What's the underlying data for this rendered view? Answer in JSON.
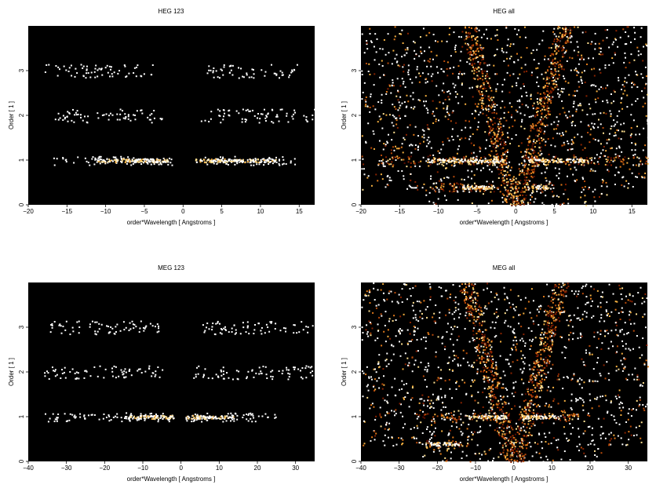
{
  "chart_data": [
    {
      "type": "heatmap",
      "title": "HEG 123",
      "xlabel": "order*Wavelength [ Angstroms ]",
      "ylabel": "Order [ 1 ]",
      "xlim": [
        -20,
        17
      ],
      "ylim": [
        0,
        4
      ],
      "xticks": [
        -20,
        -15,
        -10,
        -5,
        0,
        5,
        10,
        15
      ],
      "yticks": [
        0,
        1,
        2,
        3
      ],
      "background": "#000000",
      "bands": [
        {
          "order": 1,
          "x_ranges": [
            [
              -17,
              -1.5
            ],
            [
              1.5,
              14.5
            ]
          ],
          "peak_ranges": [
            [
              -11.5,
              -2
            ],
            [
              1.5,
              12
            ]
          ]
        },
        {
          "order": 2,
          "x_ranges": [
            [
              -17,
              -2.5
            ],
            [
              2.2,
              17
            ]
          ],
          "peak_ranges": []
        },
        {
          "order": 3,
          "x_ranges": [
            [
              -18,
              -4
            ],
            [
              3,
              15
            ]
          ],
          "peak_ranges": []
        }
      ]
    },
    {
      "type": "heatmap",
      "title": "HEG all",
      "xlabel": "order*Wavelength [ Angstroms ]",
      "ylabel": "Order [ 1 ]",
      "xlim": [
        -20,
        17
      ],
      "ylim": [
        0,
        4
      ],
      "xticks": [
        -20,
        -15,
        -10,
        -5,
        0,
        5,
        10,
        15
      ],
      "yticks": [
        0,
        1,
        2,
        3
      ],
      "background": "#000000",
      "bands": [
        {
          "order": 1,
          "x_ranges": [
            [
              -18,
              -1
            ],
            [
              1,
              17
            ]
          ],
          "peak_ranges": [
            [
              -11.5,
              -1.5
            ],
            [
              1.5,
              9
            ]
          ]
        },
        {
          "order": 0.4,
          "x_ranges": [
            [
              -11.5,
              -2
            ],
            [
              1,
              5
            ]
          ],
          "peak_ranges": [
            [
              -7,
              -3
            ],
            [
              2,
              4.5
            ]
          ]
        }
      ]
    },
    {
      "type": "heatmap",
      "title": "MEG 123",
      "xlabel": "order*Wavelength [ Angstroms ]",
      "ylabel": "Order [ 1 ]",
      "xlim": [
        -40,
        35
      ],
      "ylim": [
        0,
        4
      ],
      "xticks": [
        -40,
        -30,
        -20,
        -10,
        0,
        10,
        20,
        30
      ],
      "yticks": [
        0,
        1,
        2,
        3
      ],
      "background": "#000000",
      "bands": [
        {
          "order": 1,
          "x_ranges": [
            [
              -36,
              -2
            ],
            [
              1,
              25
            ]
          ],
          "peak_ranges": [
            [
              -14,
              -2
            ],
            [
              1,
              14
            ]
          ]
        },
        {
          "order": 2,
          "x_ranges": [
            [
              -36,
              -5
            ],
            [
              2,
              35
            ]
          ],
          "peak_ranges": []
        },
        {
          "order": 3,
          "x_ranges": [
            [
              -36,
              -6
            ],
            [
              5,
              35
            ]
          ],
          "peak_ranges": []
        }
      ]
    },
    {
      "type": "heatmap",
      "title": "MEG all",
      "xlabel": "order*Wavelength [ Angstroms ]",
      "ylabel": "Order [ 1 ]",
      "xlim": [
        -40,
        35
      ],
      "ylim": [
        0,
        4
      ],
      "xticks": [
        -40,
        -30,
        -20,
        -10,
        0,
        10,
        20,
        30
      ],
      "yticks": [
        0,
        1,
        2,
        3
      ],
      "background": "#000000",
      "bands": [
        {
          "order": 1,
          "x_ranges": [
            [
              -24,
              -1
            ],
            [
              1,
              17
            ]
          ],
          "peak_ranges": [
            [
              -12,
              -2
            ],
            [
              2,
              11
            ]
          ]
        },
        {
          "order": 0.4,
          "x_ranges": [
            [
              -24,
              -12
            ]
          ],
          "peak_ranges": [
            [
              -22,
              -14
            ]
          ]
        }
      ]
    }
  ]
}
